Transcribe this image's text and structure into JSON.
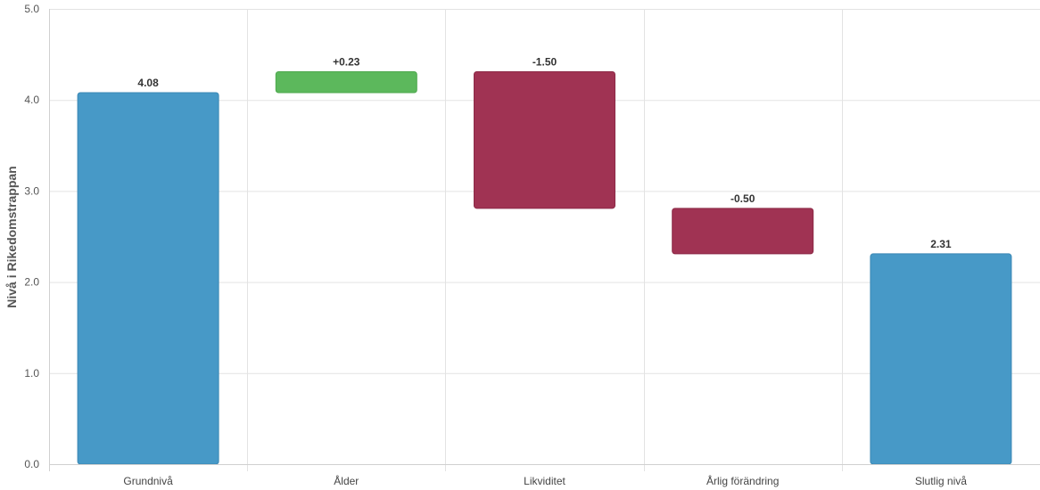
{
  "chart_data": {
    "type": "bar",
    "subtype": "waterfall",
    "ylabel": "Nivå i Rikedomstrappan",
    "ylim": [
      0,
      5
    ],
    "yticks": [
      "0.0",
      "1.0",
      "2.0",
      "3.0",
      "4.0",
      "5.0"
    ],
    "grid": true,
    "categories": [
      "Grundnivå",
      "Ålder",
      "Likviditet",
      "Årlig förändring",
      "Slutlig nivå"
    ],
    "bars": [
      {
        "category": "Grundnivå",
        "kind": "total",
        "start": 0,
        "end": 4.08,
        "label": "4.08",
        "color": "#4799c7"
      },
      {
        "category": "Ålder",
        "kind": "increase",
        "start": 4.08,
        "end": 4.31,
        "label": "+0.23",
        "color": "#5cb85c"
      },
      {
        "category": "Likviditet",
        "kind": "decrease",
        "start": 4.31,
        "end": 2.81,
        "label": "-1.50",
        "color": "#a03353"
      },
      {
        "category": "Årlig förändring",
        "kind": "decrease",
        "start": 2.81,
        "end": 2.31,
        "label": "-0.50",
        "color": "#a03353"
      },
      {
        "category": "Slutlig nivå",
        "kind": "total",
        "start": 0,
        "end": 2.31,
        "label": "2.31",
        "color": "#4799c7"
      }
    ]
  }
}
